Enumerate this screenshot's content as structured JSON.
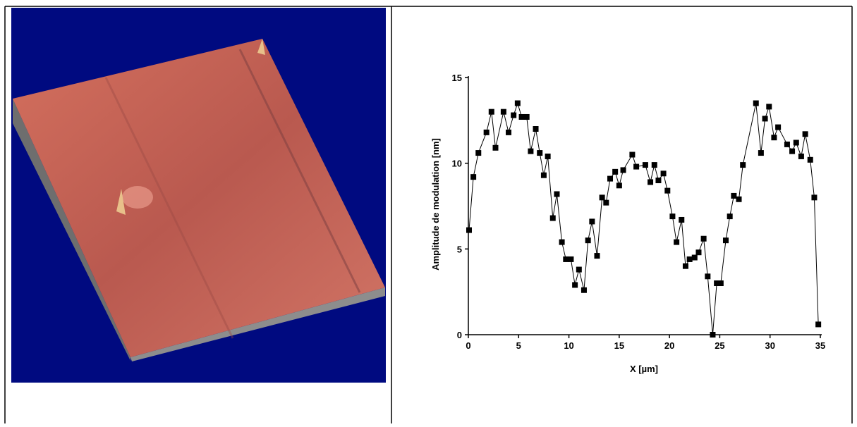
{
  "chart_data": {
    "type": "line",
    "xlabel": "X [µm]",
    "ylabel": "Amplitude de modulation [nm]",
    "x": [
      0.07,
      0.5,
      1.0,
      1.8,
      2.3,
      2.7,
      3.5,
      4.0,
      4.5,
      4.9,
      5.3,
      5.8,
      6.2,
      6.7,
      7.1,
      7.5,
      7.9,
      8.4,
      8.8,
      9.3,
      9.7,
      10.2,
      10.6,
      11.0,
      11.5,
      11.9,
      12.3,
      12.8,
      13.3,
      13.7,
      14.1,
      14.6,
      15.0,
      15.4,
      16.3,
      16.7,
      17.6,
      18.1,
      18.5,
      18.9,
      19.4,
      19.8,
      20.3,
      20.7,
      21.2,
      21.6,
      22.0,
      22.5,
      22.9,
      23.4,
      23.8,
      24.3,
      24.7,
      25.1,
      25.6,
      26.0,
      26.4,
      26.9,
      27.3,
      28.6,
      29.1,
      29.5,
      29.9,
      30.4,
      30.8,
      31.7,
      32.2,
      32.6,
      33.1,
      33.5,
      34.0,
      34.4,
      34.8
    ],
    "series": [
      {
        "color": "#000000",
        "values": [
          6.1,
          9.2,
          10.6,
          11.8,
          13.0,
          10.9,
          13.0,
          11.8,
          12.8,
          13.5,
          12.7,
          12.7,
          10.7,
          12.0,
          10.6,
          9.3,
          10.4,
          6.8,
          8.2,
          5.4,
          4.4,
          4.4,
          2.9,
          3.8,
          2.6,
          5.5,
          6.6,
          4.6,
          8.0,
          7.7,
          9.1,
          9.5,
          8.7,
          9.6,
          10.5,
          9.8,
          9.9,
          8.9,
          9.9,
          9.0,
          9.4,
          8.4,
          6.9,
          5.4,
          6.7,
          4.0,
          4.4,
          4.5,
          4.8,
          5.6,
          3.4,
          0,
          3.0,
          3.0,
          5.5,
          6.9,
          8.1,
          7.9,
          9.9,
          13.5,
          10.6,
          12.6,
          13.3,
          11.5,
          12.1,
          11.1,
          10.7,
          11.2,
          10.4,
          11.7,
          10.2,
          8.0,
          0.6
        ]
      }
    ],
    "xlim": [
      0,
      35
    ],
    "ylim": [
      0,
      15
    ],
    "xticks": [
      0,
      5,
      10,
      15,
      20,
      25,
      30,
      35
    ],
    "yticks": [
      0,
      5,
      10,
      15
    ]
  }
}
